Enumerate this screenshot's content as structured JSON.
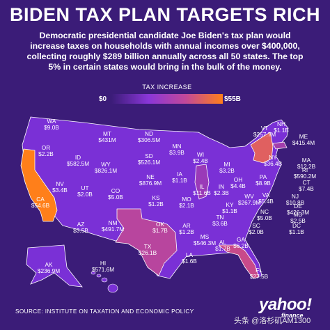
{
  "title": "BIDEN TAX PLAN TARGETS RICH",
  "subtitle": "Democratic presidential candidate Joe Biden's tax plan would increase taxes on households with annual incomes over $400,000, collecting roughly $289 billion annually across all 50 states. The top 5% in certain states would bring in the bulk of the money.",
  "legend": {
    "title": "TAX INCREASE",
    "min": "$0",
    "max": "$55B"
  },
  "colors": {
    "background": "#3b1c78",
    "low": "#8a36d8",
    "mid": "#c2489a",
    "high": "#ff7f1a",
    "border": "#ffffff"
  },
  "states": [
    {
      "abbr": "WA",
      "value": "$9.0B"
    },
    {
      "abbr": "OR",
      "value": "$2.2B"
    },
    {
      "abbr": "CA",
      "value": "$54.6B"
    },
    {
      "abbr": "ID",
      "value": "$582.5M"
    },
    {
      "abbr": "NV",
      "value": "$3.4B"
    },
    {
      "abbr": "MT",
      "value": "$431M"
    },
    {
      "abbr": "WY",
      "value": "$826.1M"
    },
    {
      "abbr": "UT",
      "value": "$2.0B"
    },
    {
      "abbr": "AZ",
      "value": "$3.5B"
    },
    {
      "abbr": "CO",
      "value": "$5.0B"
    },
    {
      "abbr": "NM",
      "value": "$491.7M"
    },
    {
      "abbr": "ND",
      "value": "$306.5M"
    },
    {
      "abbr": "SD",
      "value": "$526.1M"
    },
    {
      "abbr": "NE",
      "value": "$876.9M"
    },
    {
      "abbr": "KS",
      "value": "$1.2B"
    },
    {
      "abbr": "OK",
      "value": "$1.7B"
    },
    {
      "abbr": "TX",
      "value": "$26.1B"
    },
    {
      "abbr": "MN",
      "value": "$3.9B"
    },
    {
      "abbr": "IA",
      "value": "$1.1B"
    },
    {
      "abbr": "MO",
      "value": "$2.1B"
    },
    {
      "abbr": "AR",
      "value": "$1.2B"
    },
    {
      "abbr": "LA",
      "value": "$1.6B"
    },
    {
      "abbr": "WI",
      "value": "$2.4B"
    },
    {
      "abbr": "IL",
      "value": "$11.6B"
    },
    {
      "abbr": "MI",
      "value": "$3.2B"
    },
    {
      "abbr": "IN",
      "value": "$2.3B"
    },
    {
      "abbr": "OH",
      "value": "$4.4B"
    },
    {
      "abbr": "KY",
      "value": "$1.1B"
    },
    {
      "abbr": "TN",
      "value": "$3.6B"
    },
    {
      "abbr": "MS",
      "value": "$546.3M"
    },
    {
      "abbr": "AL",
      "value": "$1.7B"
    },
    {
      "abbr": "GA",
      "value": "$6.2B"
    },
    {
      "abbr": "FL",
      "value": "$27.5B"
    },
    {
      "abbr": "SC",
      "value": "$2.0B"
    },
    {
      "abbr": "NC",
      "value": "$5.0B"
    },
    {
      "abbr": "VA",
      "value": "$5.4B"
    },
    {
      "abbr": "WV",
      "value": "$267.9M"
    },
    {
      "abbr": "PA",
      "value": "$8.9B"
    },
    {
      "abbr": "NY",
      "value": "$36.4B"
    },
    {
      "abbr": "VT",
      "value": "$257.7M"
    },
    {
      "abbr": "NH",
      "value": "$1.1B"
    },
    {
      "abbr": "ME",
      "value": "$415.4M"
    },
    {
      "abbr": "MA",
      "value": "$12.2B"
    },
    {
      "abbr": "RI",
      "value": "$590.2M"
    },
    {
      "abbr": "CT",
      "value": "$7.4B"
    },
    {
      "abbr": "NJ",
      "value": "$10.8B"
    },
    {
      "abbr": "DE",
      "value": "$426.3M"
    },
    {
      "abbr": "MD",
      "value": "$2.5B"
    },
    {
      "abbr": "DC",
      "value": "$1.1B"
    },
    {
      "abbr": "AK",
      "value": "$236.9M"
    },
    {
      "abbr": "HI",
      "value": "$571.6M"
    }
  ],
  "source": "SOURCE:  INSTITUTE ON TAXATION AND ECONOMIC POLICY",
  "logo": {
    "name": "yahoo!",
    "sub": "finance"
  },
  "watermark": "头条 @洛杉矶AM1300"
}
